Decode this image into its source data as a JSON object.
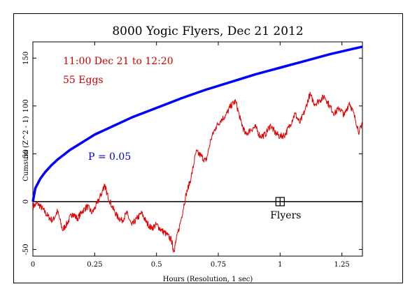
{
  "chart_data": {
    "type": "line",
    "title": "8000 Yogic Flyers, Dec 21 2012",
    "xlabel": "Hours (Resolution, 1 sec)",
    "ylabel": "Cumsum (Z^2 - 1)",
    "xlim": [
      0,
      1.333
    ],
    "ylim": [
      -57,
      167
    ],
    "x_ticks": [
      0,
      0.25,
      0.5,
      0.75,
      1,
      1.25
    ],
    "x_tick_labels": [
      "0",
      "0.25",
      "0.5",
      "0.75",
      "1",
      "1.25"
    ],
    "y_ticks": [
      -50,
      0,
      50,
      100,
      150
    ],
    "y_tick_labels": [
      "-50",
      "0",
      "50",
      "100",
      "150"
    ],
    "annotations": {
      "time_range": "11:00 Dec 21 to 12:20",
      "eggs": "55 Eggs",
      "p_label": "P = 0.05",
      "marker_label": "Flyers",
      "marker_position": [
        1.0,
        0
      ]
    },
    "colors": {
      "cumsum": "#e00000",
      "p_envelope": "#0000ff",
      "zero_line": "#000000",
      "time_text": "#cc0000",
      "p_text": "#0000cc"
    },
    "series": [
      {
        "role": "cumsum",
        "x": [
          0,
          0.02,
          0.04,
          0.06,
          0.08,
          0.1,
          0.12,
          0.14,
          0.16,
          0.18,
          0.2,
          0.22,
          0.24,
          0.26,
          0.28,
          0.29,
          0.3,
          0.32,
          0.34,
          0.36,
          0.38,
          0.4,
          0.42,
          0.44,
          0.46,
          0.48,
          0.5,
          0.52,
          0.54,
          0.56,
          0.57,
          0.58,
          0.6,
          0.62,
          0.64,
          0.66,
          0.68,
          0.7,
          0.72,
          0.74,
          0.76,
          0.78,
          0.8,
          0.82,
          0.84,
          0.86,
          0.88,
          0.9,
          0.92,
          0.94,
          0.96,
          0.98,
          1.0,
          1.02,
          1.04,
          1.06,
          1.08,
          1.1,
          1.12,
          1.14,
          1.16,
          1.18,
          1.2,
          1.22,
          1.24,
          1.26,
          1.28,
          1.3,
          1.32,
          1.333
        ],
        "values": [
          -5,
          -2,
          -8,
          -15,
          -20,
          -10,
          -30,
          -22,
          -12,
          -18,
          -10,
          -5,
          -12,
          -2,
          10,
          18,
          8,
          -5,
          -15,
          -20,
          -12,
          -25,
          -18,
          -12,
          -22,
          -28,
          -24,
          -30,
          -34,
          -40,
          -52,
          -40,
          -18,
          8,
          25,
          52,
          48,
          42,
          65,
          78,
          85,
          90,
          100,
          105,
          85,
          70,
          75,
          78,
          68,
          70,
          80,
          72,
          68,
          70,
          80,
          92,
          82,
          95,
          112,
          102,
          106,
          110,
          100,
          92,
          98,
          90,
          104,
          90,
          72,
          84
        ]
      },
      {
        "role": "p_envelope",
        "name": "P = 0.05",
        "x": [
          0,
          0.01,
          0.03,
          0.05,
          0.075,
          0.1,
          0.15,
          0.2,
          0.25,
          0.3,
          0.4,
          0.5,
          0.6,
          0.7,
          0.8,
          0.9,
          1.0,
          1.1,
          1.2,
          1.3,
          1.333
        ],
        "values": [
          0,
          14,
          24,
          31,
          38,
          44,
          54,
          62,
          70,
          76,
          88,
          98,
          108,
          117,
          125,
          133,
          140,
          147,
          154,
          160,
          162
        ]
      }
    ]
  }
}
